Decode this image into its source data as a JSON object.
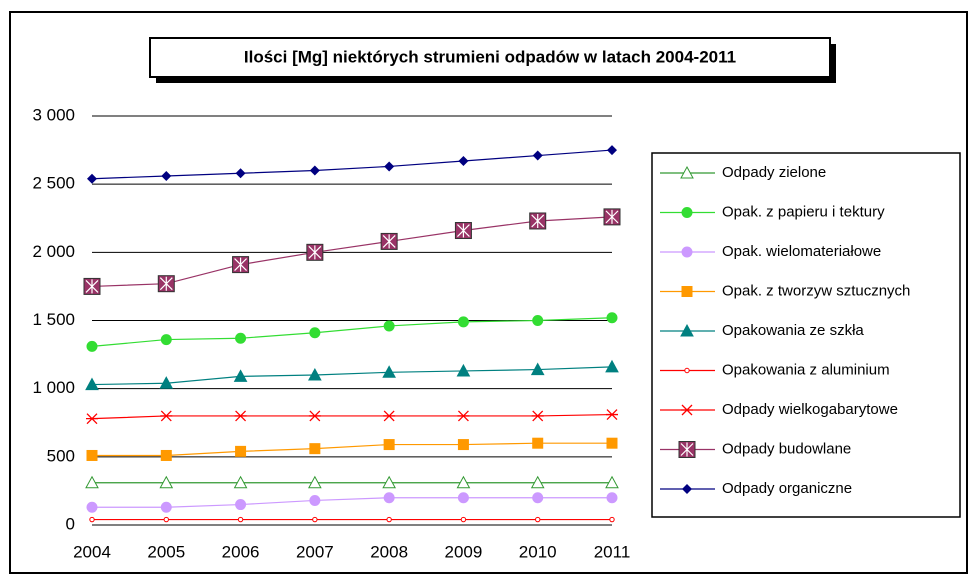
{
  "chart_data": {
    "type": "line",
    "title": "Ilości [Mg] niektórych strumieni odpadów w latach 2004-2011",
    "categories": [
      "2004",
      "2005",
      "2006",
      "2007",
      "2008",
      "2009",
      "2010",
      "2011"
    ],
    "ylim": [
      0,
      3000
    ],
    "yticks": [
      0,
      500,
      {
        "value": 1000,
        "label": "1 000"
      },
      {
        "value": 1500,
        "label": "1 500"
      },
      {
        "value": 2000,
        "label": "2 000"
      },
      {
        "value": 2500,
        "label": "2 500"
      },
      {
        "value": 3000,
        "label": "3 000"
      }
    ],
    "grid": true,
    "legend": "right",
    "series": [
      {
        "name": "Odpady  zielone",
        "color": "#339933",
        "marker": "triangle-open",
        "values": [
          310,
          310,
          310,
          310,
          310,
          310,
          310,
          310
        ]
      },
      {
        "name": "Opak.  z papieru i tektury",
        "color": "#33dd33",
        "marker": "circle",
        "values": [
          1310,
          1360,
          1370,
          1410,
          1460,
          1490,
          1500,
          1520
        ]
      },
      {
        "name": "Opak.  wielomateriałowe",
        "color": "#cc99ff",
        "marker": "circle",
        "values": [
          130,
          130,
          150,
          180,
          200,
          200,
          200,
          200
        ]
      },
      {
        "name": "Opak.  z tworzyw sztucznych",
        "color": "#ff9900",
        "marker": "square",
        "values": [
          510,
          510,
          540,
          560,
          590,
          590,
          600,
          600
        ]
      },
      {
        "name": "Opakowania ze szkła",
        "color": "#008080",
        "marker": "triangle",
        "values": [
          1030,
          1040,
          1090,
          1100,
          1120,
          1130,
          1140,
          1160
        ]
      },
      {
        "name": "Opakowania z aluminium",
        "color": "#ff0000",
        "marker": "circle-open",
        "values": [
          40,
          40,
          40,
          40,
          40,
          40,
          40,
          40
        ]
      },
      {
        "name": "Odpady  wielkogabarytowe",
        "color": "#ff0000",
        "marker": "star",
        "values": [
          780,
          800,
          800,
          800,
          800,
          800,
          800,
          810
        ]
      },
      {
        "name": "Odpady  budowlane",
        "color": "#993366",
        "marker": "square-x",
        "values": [
          1750,
          1770,
          1910,
          2000,
          2080,
          2160,
          2230,
          2260
        ]
      },
      {
        "name": "Odpady  organiczne",
        "color": "#000080",
        "marker": "diamond",
        "values": [
          2540,
          2560,
          2580,
          2600,
          2630,
          2670,
          2710,
          2750
        ]
      }
    ]
  }
}
